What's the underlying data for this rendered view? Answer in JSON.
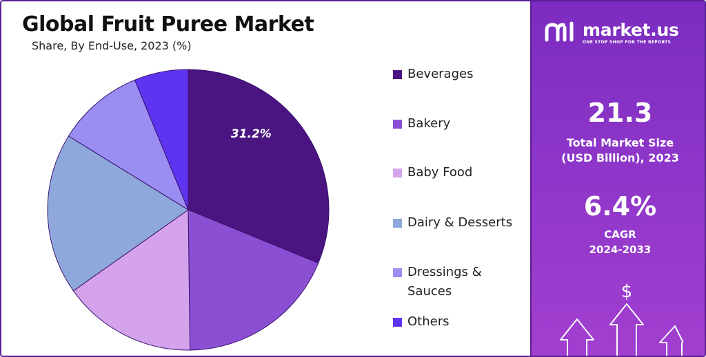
{
  "title": "Global Fruit Puree Market",
  "subtitle": "Share, By End-Use, 2023 (%)",
  "chart_data": {
    "type": "pie",
    "title": "Global Fruit Puree Market",
    "subtitle": "Share, By End-Use, 2023 (%)",
    "categories": [
      "Beverages",
      "Bakery",
      "Baby Food",
      "Dairy & Desserts",
      "Dressings & Sauces",
      "Others"
    ],
    "values": [
      31.2,
      18.6,
      15.4,
      18.6,
      10.0,
      6.2
    ],
    "colors": [
      "#4a1580",
      "#8b4fd4",
      "#d4a3ec",
      "#8fa8dc",
      "#9a8ef2",
      "#5f34f0"
    ],
    "data_labels": [
      {
        "category": "Beverages",
        "text": "31.2%"
      }
    ],
    "legend_position": "right"
  },
  "legend": {
    "items": [
      {
        "label": "Beverages",
        "color": "#4a1580"
      },
      {
        "label": "Bakery",
        "color": "#8b4fd4"
      },
      {
        "label": "Baby Food",
        "color": "#d4a3ec"
      },
      {
        "label": "Dairy & Desserts",
        "color": "#8fa8dc"
      },
      {
        "label": "Dressings & Sauces",
        "color": "#9a8ef2"
      },
      {
        "label": "Others",
        "color": "#5f34f0"
      }
    ]
  },
  "panel": {
    "brand_name": "market.us",
    "brand_tagline": "ONE STOP SHOP FOR THE REPORTS",
    "market_size_value": "21.3",
    "market_size_label_line1": "Total Market Size",
    "market_size_label_line2": "(USD Billion), 2023",
    "cagr_value": "6.4%",
    "cagr_label_line1": "CAGR",
    "cagr_label_line2": "2024-2033",
    "currency_symbol": "$",
    "logo_icon": "market-us-logo-icon",
    "arrows_icon": "growth-arrows-icon"
  }
}
